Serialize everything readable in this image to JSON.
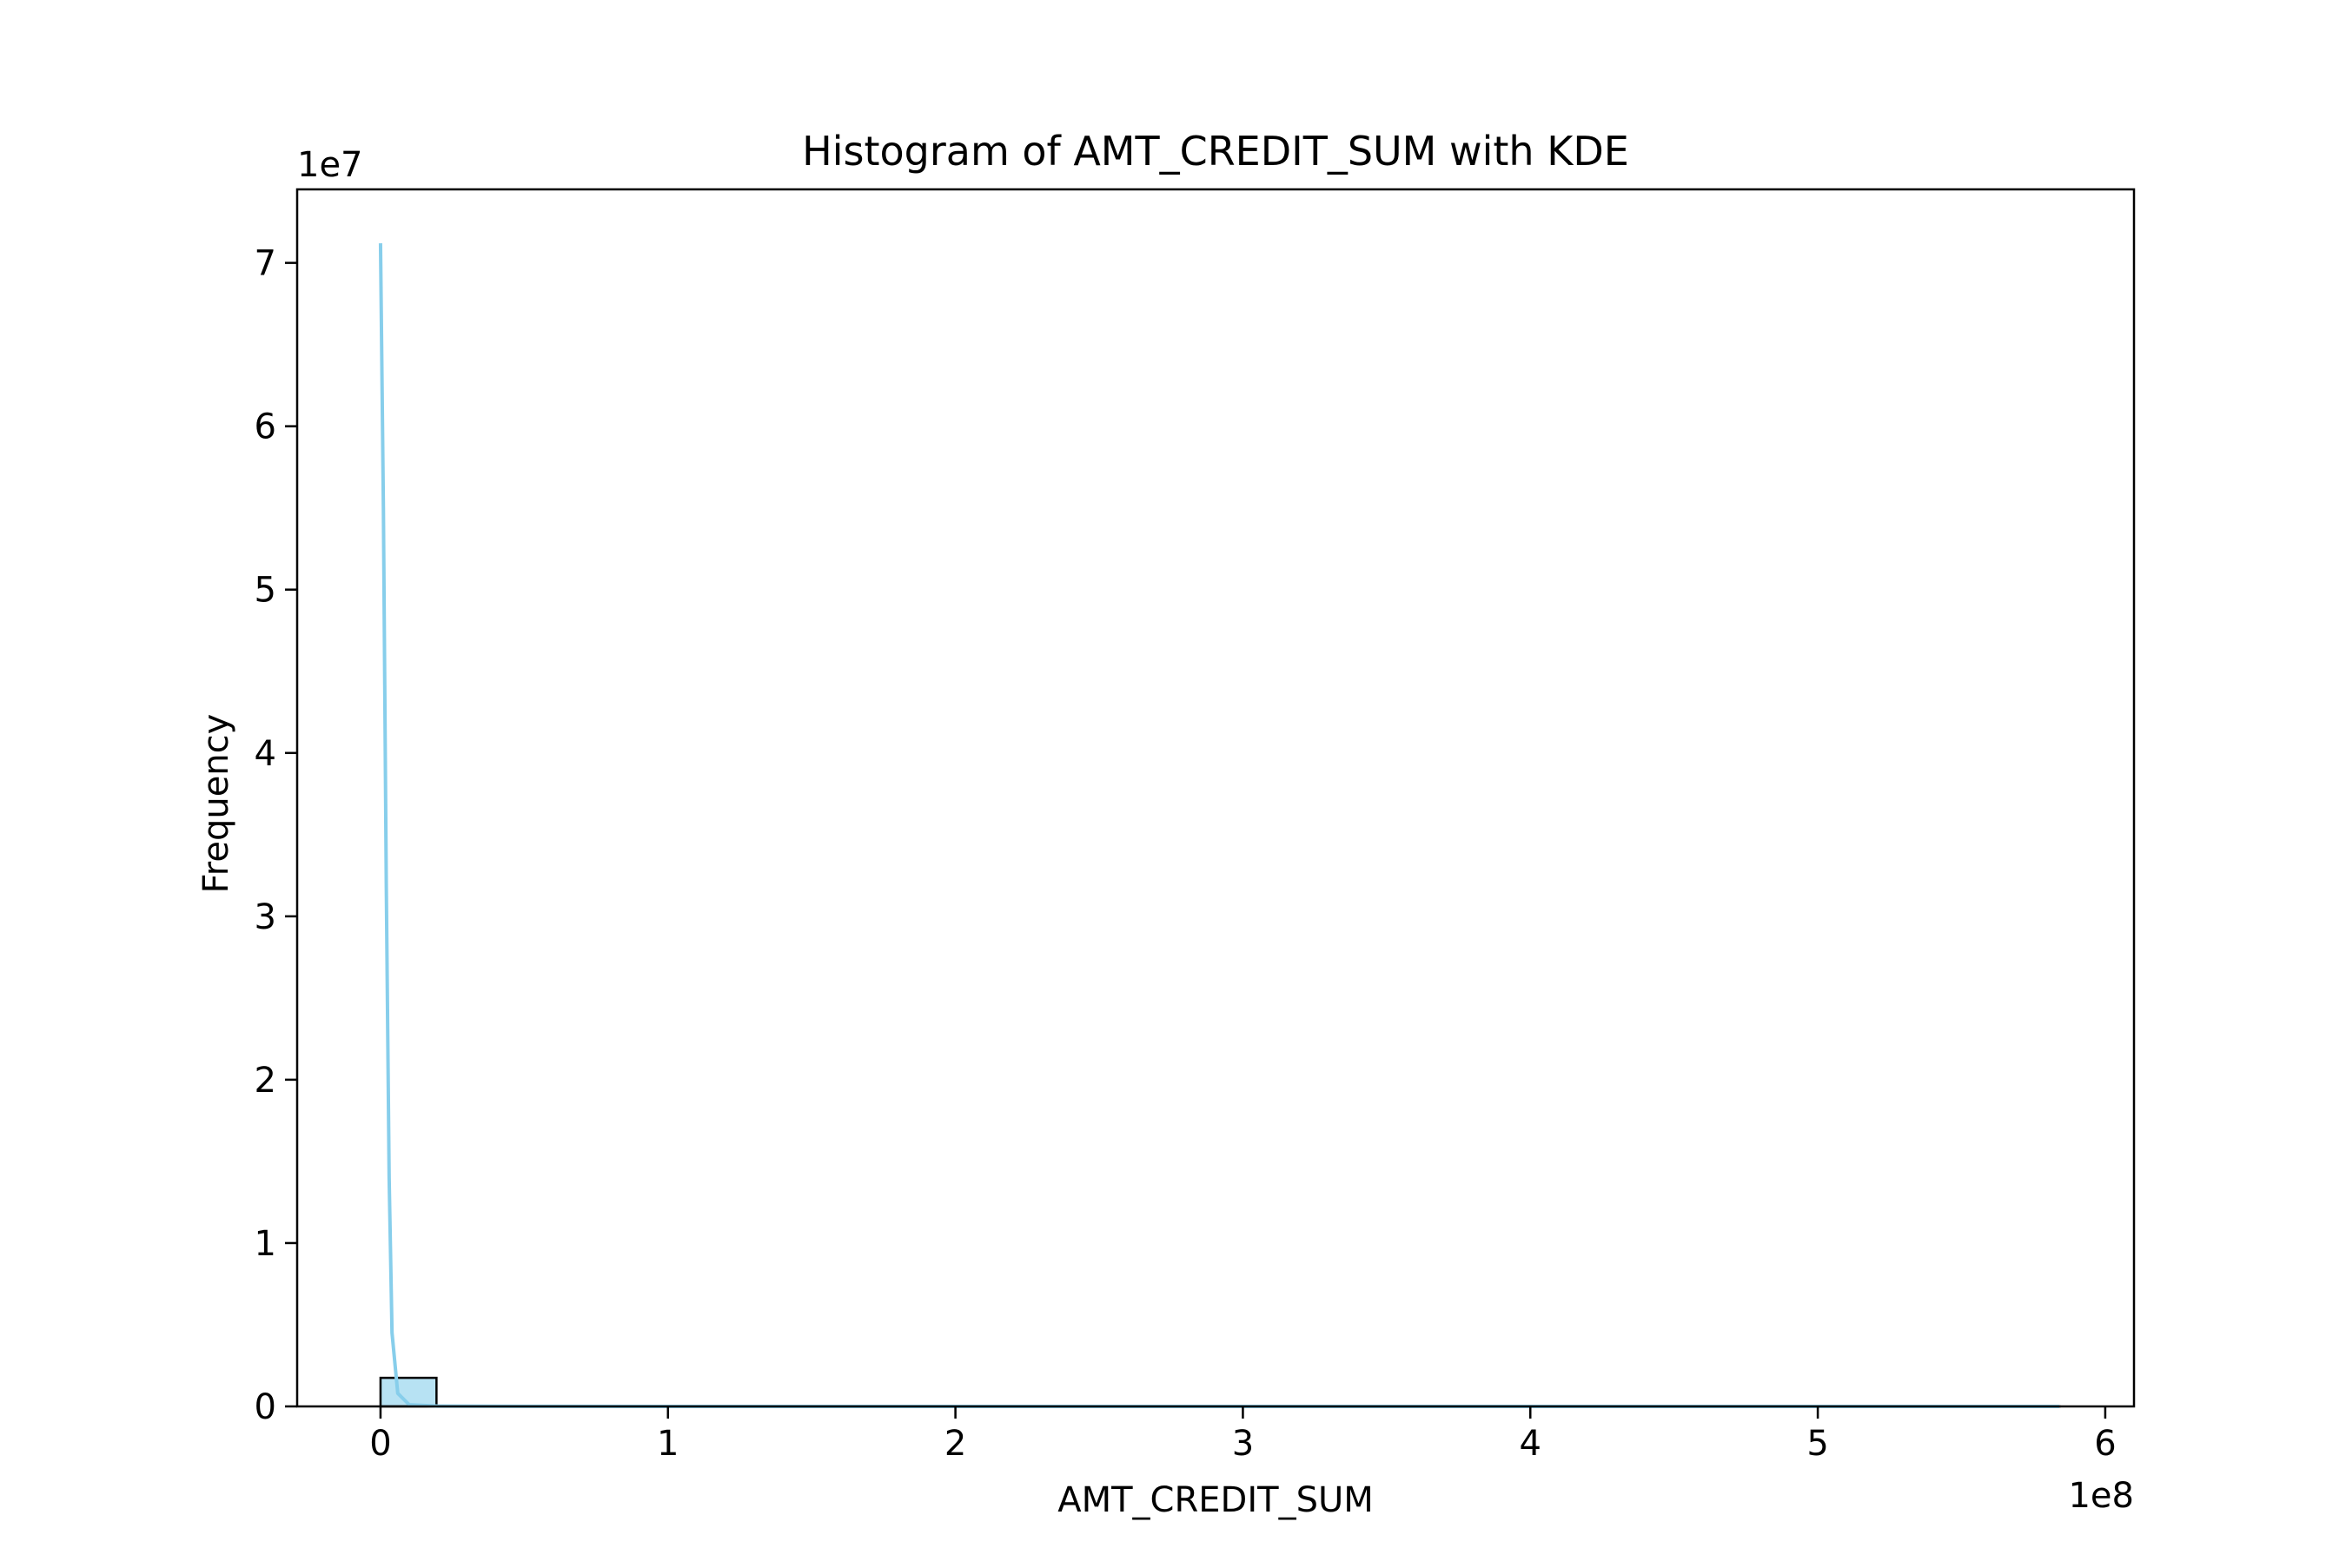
{
  "chart_data": {
    "type": "bar",
    "title": "Histogram of AMT_CREDIT_SUM with KDE",
    "xlabel": "AMT_CREDIT_SUM",
    "ylabel": "Frequency",
    "x_offset_label": "1e8",
    "y_offset_label": "1e7",
    "xlim": [
      -0.29,
      6.1
    ],
    "ylim": [
      0,
      7.45
    ],
    "x_ticks": [
      0,
      1,
      2,
      3,
      4,
      5,
      6
    ],
    "y_ticks": [
      0,
      1,
      2,
      3,
      4,
      5,
      6,
      7
    ],
    "grid": false,
    "colors": {
      "bar_fill": "#87CEEB",
      "bar_fill_opacity": 0.6,
      "bar_edge": "#000000",
      "kde_line": "#87CEEB",
      "axes": "#000000"
    },
    "bins": {
      "start": 0,
      "width": 0.1947,
      "count": 30,
      "values": [
        0.175,
        0.0008,
        0.0002,
        0.0001,
        0.0001,
        5e-05,
        3e-05,
        2e-05,
        1e-05,
        1e-05,
        1e-05,
        1e-05,
        1e-05,
        1e-05,
        1e-05,
        1e-05,
        1e-05,
        1e-05,
        1e-05,
        1e-05,
        1e-05,
        1e-05,
        1e-05,
        1e-05,
        1e-05,
        1e-05,
        1e-05,
        1e-05,
        1e-05,
        1e-05
      ]
    },
    "kde": {
      "x": [
        0,
        0.01,
        0.02,
        0.03,
        0.04,
        0.06,
        0.1,
        0.2,
        0.5,
        1,
        2,
        3,
        4,
        5,
        5.84
      ],
      "y": [
        7.12,
        5.5,
        3.2,
        1.4,
        0.45,
        0.08,
        0.01,
        0.002,
        0.0005,
        0.0002,
        0.0001,
        0.0001,
        0.0001,
        0.0001,
        0.0001
      ]
    }
  }
}
